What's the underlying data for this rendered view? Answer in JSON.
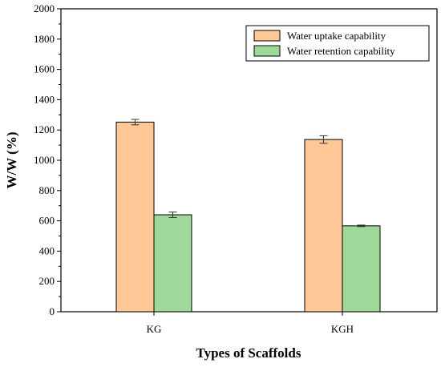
{
  "chart_data": {
    "type": "bar",
    "title": "",
    "xlabel": "Types of Scaffolds",
    "ylabel": "W/W (%)",
    "ylim": [
      0,
      2000
    ],
    "yticks": [
      0,
      200,
      400,
      600,
      800,
      1000,
      1200,
      1400,
      1600,
      1800,
      2000
    ],
    "categories": [
      "KG",
      "KGH"
    ],
    "grid": false,
    "legend_position": "top-right",
    "series": [
      {
        "name": "Water uptake capability",
        "color": "#FFC896",
        "values": [
          1252,
          1137
        ],
        "errors": [
          18,
          25
        ]
      },
      {
        "name": "Water retention capability",
        "color": "#9ED99A",
        "values": [
          640,
          567
        ],
        "errors": [
          18,
          5
        ]
      }
    ]
  }
}
